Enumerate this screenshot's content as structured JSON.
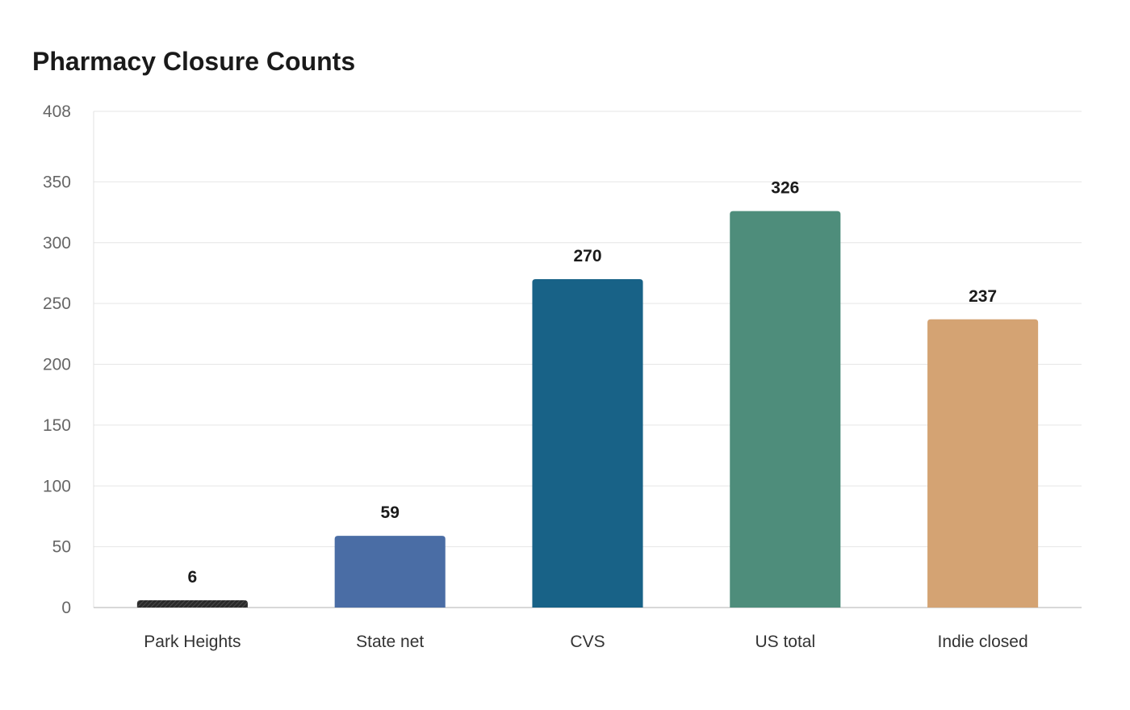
{
  "chart_data": {
    "type": "bar",
    "title": "Pharmacy Closure Counts",
    "xlabel": "",
    "ylabel": "",
    "categories": [
      "Park Heights",
      "State net",
      "CVS",
      "US total",
      "Indie closed"
    ],
    "values": [
      6,
      59,
      270,
      326,
      237
    ],
    "data_labels": [
      "6",
      "59",
      "270",
      "326",
      "237"
    ],
    "colors": [
      "#2a2a2a",
      "#4a6da5",
      "#186287",
      "#4e8d7b",
      "#d4a373"
    ],
    "ylim": [
      0,
      408
    ],
    "yticks": [
      0,
      50,
      100,
      150,
      200,
      250,
      300,
      350,
      408
    ],
    "ytick_labels": [
      "0",
      "50",
      "100",
      "150",
      "200",
      "250",
      "300",
      "350",
      "408"
    ],
    "grid": true,
    "legend": "none"
  }
}
